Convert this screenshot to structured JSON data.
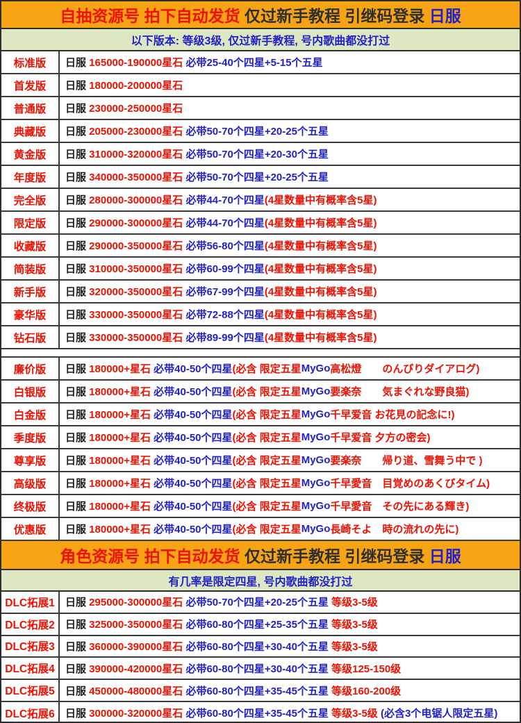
{
  "colors": {
    "header_background": "#f7a414",
    "subheader_background": "#dde7c2",
    "grid_border": "#3b3b3b",
    "text_red": "#ee1000",
    "text_blue": "#2121cc",
    "text_black": "#1f1f1f"
  },
  "section1": {
    "header_segments": [
      {
        "t": "自抽资源号 拍下自动发货 ",
        "c": "r"
      },
      {
        "t": "仅过新手教程 引继码登录 ",
        "c": "hd"
      },
      {
        "t": "日服",
        "c": "b"
      }
    ],
    "subheader": "以下版本: 等级3级, 仅过新手教程, 号内歌曲都没打过",
    "rows": [
      {
        "label": "标准版",
        "segments": [
          {
            "t": "日服 ",
            "c": "k"
          },
          {
            "t": "165000-190000星石 ",
            "c": "r"
          },
          {
            "t": "必带25-40个四星+5-15个五星",
            "c": "b"
          }
        ]
      },
      {
        "label": "首发版",
        "segments": [
          {
            "t": "日服 ",
            "c": "k"
          },
          {
            "t": "180000-200000星石",
            "c": "r"
          }
        ]
      },
      {
        "label": "普通版",
        "segments": [
          {
            "t": "日服 ",
            "c": "k"
          },
          {
            "t": "230000-250000星石",
            "c": "r"
          }
        ]
      },
      {
        "label": "典藏版",
        "segments": [
          {
            "t": "日服 ",
            "c": "k"
          },
          {
            "t": "205000-230000星石 ",
            "c": "r"
          },
          {
            "t": "必带50-70个四星+20-25个五星",
            "c": "b"
          }
        ]
      },
      {
        "label": "黄金版",
        "segments": [
          {
            "t": "日服 ",
            "c": "k"
          },
          {
            "t": "310000-320000星石 ",
            "c": "r"
          },
          {
            "t": "必带50-70个四星+20-30个五星",
            "c": "b"
          }
        ]
      },
      {
        "label": "年度版",
        "segments": [
          {
            "t": "日服 ",
            "c": "k"
          },
          {
            "t": "340000-350000星石 ",
            "c": "r"
          },
          {
            "t": "必带50-70个四星+20-25个五星",
            "c": "b"
          }
        ]
      },
      {
        "label": "完全版",
        "segments": [
          {
            "t": "日服 ",
            "c": "k"
          },
          {
            "t": "280000-300000星石 ",
            "c": "r"
          },
          {
            "t": "必带44-70个四星",
            "c": "b"
          },
          {
            "t": "(4星数量中有概率含5星)",
            "c": "r"
          }
        ]
      },
      {
        "label": "限定版",
        "segments": [
          {
            "t": "日服 ",
            "c": "k"
          },
          {
            "t": "290000-300000星石 ",
            "c": "r"
          },
          {
            "t": "必带44-70个四星",
            "c": "b"
          },
          {
            "t": "(4星数量中有概率含5星)",
            "c": "r"
          }
        ]
      },
      {
        "label": "收藏版",
        "segments": [
          {
            "t": "日服 ",
            "c": "k"
          },
          {
            "t": "290000-350000星石 ",
            "c": "r"
          },
          {
            "t": "必带56-80个四星",
            "c": "b"
          },
          {
            "t": "(4星数量中有概率含5星)",
            "c": "r"
          }
        ]
      },
      {
        "label": "简装版",
        "segments": [
          {
            "t": "日服 ",
            "c": "k"
          },
          {
            "t": "310000-350000星石 ",
            "c": "r"
          },
          {
            "t": "必带60-99个四星",
            "c": "b"
          },
          {
            "t": "(4星数量中有概率含5星)",
            "c": "r"
          }
        ]
      },
      {
        "label": "新手版",
        "segments": [
          {
            "t": "日服 ",
            "c": "k"
          },
          {
            "t": "320000-350000星石 ",
            "c": "r"
          },
          {
            "t": "必带67-99个四星",
            "c": "b"
          },
          {
            "t": "(4星数量中有概率含5星)",
            "c": "r"
          }
        ]
      },
      {
        "label": "豪华版",
        "segments": [
          {
            "t": "日服 ",
            "c": "k"
          },
          {
            "t": "330000-350000星石 ",
            "c": "r"
          },
          {
            "t": "必带72-88个四星",
            "c": "b"
          },
          {
            "t": "(4星数量中有概率含5星)",
            "c": "r"
          }
        ]
      },
      {
        "label": "钻石版",
        "segments": [
          {
            "t": "日服 ",
            "c": "k"
          },
          {
            "t": "330000-350000星石 ",
            "c": "r"
          },
          {
            "t": "必带89-99个四星",
            "c": "b"
          },
          {
            "t": "(4星数量中有概率含5星)",
            "c": "r"
          }
        ]
      },
      {
        "spacer": true
      },
      {
        "label": "廉价版",
        "segments": [
          {
            "t": "日服 ",
            "c": "k"
          },
          {
            "t": "180000+星石 ",
            "c": "r"
          },
          {
            "t": "必带40-50个四星",
            "c": "b"
          },
          {
            "t": "(必含 限定五星",
            "c": "r"
          },
          {
            "t": "MyGo",
            "c": "b"
          },
          {
            "t": "高松燈　　のんびりダイアログ)",
            "c": "r"
          }
        ]
      },
      {
        "label": "白银版",
        "segments": [
          {
            "t": "日服 ",
            "c": "k"
          },
          {
            "t": "180000+星石 ",
            "c": "r"
          },
          {
            "t": "必带40-50个四星",
            "c": "b"
          },
          {
            "t": "(必含 限定五星",
            "c": "r"
          },
          {
            "t": "MyGo",
            "c": "b"
          },
          {
            "t": "要楽奈　　気まぐれな野良猫)",
            "c": "r"
          }
        ]
      },
      {
        "label": "白金版",
        "segments": [
          {
            "t": "日服 ",
            "c": "k"
          },
          {
            "t": "180000+星石 ",
            "c": "r"
          },
          {
            "t": "必带40-50个四星",
            "c": "b"
          },
          {
            "t": "(必含 限定五星",
            "c": "r"
          },
          {
            "t": "MyGo",
            "c": "b"
          },
          {
            "t": "千早爱音 お花見の記念に!)",
            "c": "r"
          }
        ]
      },
      {
        "label": "季度版",
        "segments": [
          {
            "t": "日服 ",
            "c": "k"
          },
          {
            "t": "180000+星石 ",
            "c": "r"
          },
          {
            "t": "必带40-50个四星",
            "c": "b"
          },
          {
            "t": "(必含 限定五星",
            "c": "r"
          },
          {
            "t": "MyGo",
            "c": "b"
          },
          {
            "t": "千早爱音 夕方の密会)",
            "c": "r"
          }
        ]
      },
      {
        "label": "尊享版",
        "segments": [
          {
            "t": "日服 ",
            "c": "k"
          },
          {
            "t": "180000+星石 ",
            "c": "r"
          },
          {
            "t": "必带40-50个四星",
            "c": "b"
          },
          {
            "t": "(必含 限定五星",
            "c": "r"
          },
          {
            "t": "MyGo",
            "c": "b"
          },
          {
            "t": "要楽奈　　帰り道、雪舞う中で )",
            "c": "r"
          }
        ]
      },
      {
        "label": "高级版",
        "segments": [
          {
            "t": "日服 ",
            "c": "k"
          },
          {
            "t": "180000+星石 ",
            "c": "r"
          },
          {
            "t": "必带40-50个四星",
            "c": "b"
          },
          {
            "t": "(必含 限定五星",
            "c": "r"
          },
          {
            "t": "MyGo",
            "c": "b"
          },
          {
            "t": "千早愛音　目覚めのあくびタイム)",
            "c": "r"
          }
        ]
      },
      {
        "label": "终极版",
        "segments": [
          {
            "t": "日服 ",
            "c": "k"
          },
          {
            "t": "180000+星石 ",
            "c": "r"
          },
          {
            "t": "必带40-50个四星",
            "c": "b"
          },
          {
            "t": "(必含 限定五星",
            "c": "r"
          },
          {
            "t": "MyGo",
            "c": "b"
          },
          {
            "t": "千早愛音　その先にある輝き)",
            "c": "r"
          }
        ]
      },
      {
        "label": "优惠版",
        "segments": [
          {
            "t": "日服 ",
            "c": "k"
          },
          {
            "t": "180000+星石 ",
            "c": "r"
          },
          {
            "t": "必带40-50个四星",
            "c": "b"
          },
          {
            "t": "(必含 限定五星",
            "c": "r"
          },
          {
            "t": "MyGo",
            "c": "b"
          },
          {
            "t": "長崎そよ　時の流れの先に)",
            "c": "r"
          }
        ]
      }
    ]
  },
  "section2": {
    "header_segments": [
      {
        "t": "角色资源号 拍下自动发货 ",
        "c": "r"
      },
      {
        "t": "仅过新手教程 引继码登录 ",
        "c": "hd"
      },
      {
        "t": "日服",
        "c": "b"
      }
    ],
    "subheader": "有几率是限定四星, 号内歌曲都没打过",
    "rows": [
      {
        "label": "DLC拓展1",
        "segments": [
          {
            "t": "日服 ",
            "c": "k"
          },
          {
            "t": "295000-300000星石 ",
            "c": "r"
          },
          {
            "t": "必带50-70个四星+20-25个五星 ",
            "c": "b"
          },
          {
            "t": "等级3-5级",
            "c": "r"
          }
        ]
      },
      {
        "label": "DLC拓展2",
        "segments": [
          {
            "t": "日服 ",
            "c": "k"
          },
          {
            "t": "325000-350000星石 ",
            "c": "r"
          },
          {
            "t": "必带60-80个四星+25-35个五星 ",
            "c": "b"
          },
          {
            "t": "等级3-5级",
            "c": "r"
          }
        ]
      },
      {
        "label": "DLC拓展3",
        "segments": [
          {
            "t": "日服 ",
            "c": "k"
          },
          {
            "t": "360000-390000星石 ",
            "c": "r"
          },
          {
            "t": "必带60-80个四星+30-40个五星 ",
            "c": "b"
          },
          {
            "t": "等级3-5级",
            "c": "r"
          }
        ]
      },
      {
        "label": "DLC拓展4",
        "segments": [
          {
            "t": "日服 ",
            "c": "k"
          },
          {
            "t": "390000-420000星石 ",
            "c": "r"
          },
          {
            "t": "必带60-80个四星+30-40个五星 ",
            "c": "b"
          },
          {
            "t": "等级125-150级",
            "c": "r"
          }
        ]
      },
      {
        "label": "DLC拓展5",
        "segments": [
          {
            "t": "日服 ",
            "c": "k"
          },
          {
            "t": "450000-480000星石 ",
            "c": "r"
          },
          {
            "t": "必带60-80个四星+35-45个五星 ",
            "c": "b"
          },
          {
            "t": "等级160-200级",
            "c": "r"
          }
        ]
      },
      {
        "label": "DLC拓展6",
        "segments": [
          {
            "t": "日服 ",
            "c": "k"
          },
          {
            "t": "300000-320000星石 ",
            "c": "r"
          },
          {
            "t": "必带60-80个四星+35-45个五星 ",
            "c": "b"
          },
          {
            "t": "等级3-5级 ",
            "c": "r"
          },
          {
            "t": "(必含3个电锯人限定五星)",
            "c": "b"
          }
        ]
      }
    ]
  }
}
